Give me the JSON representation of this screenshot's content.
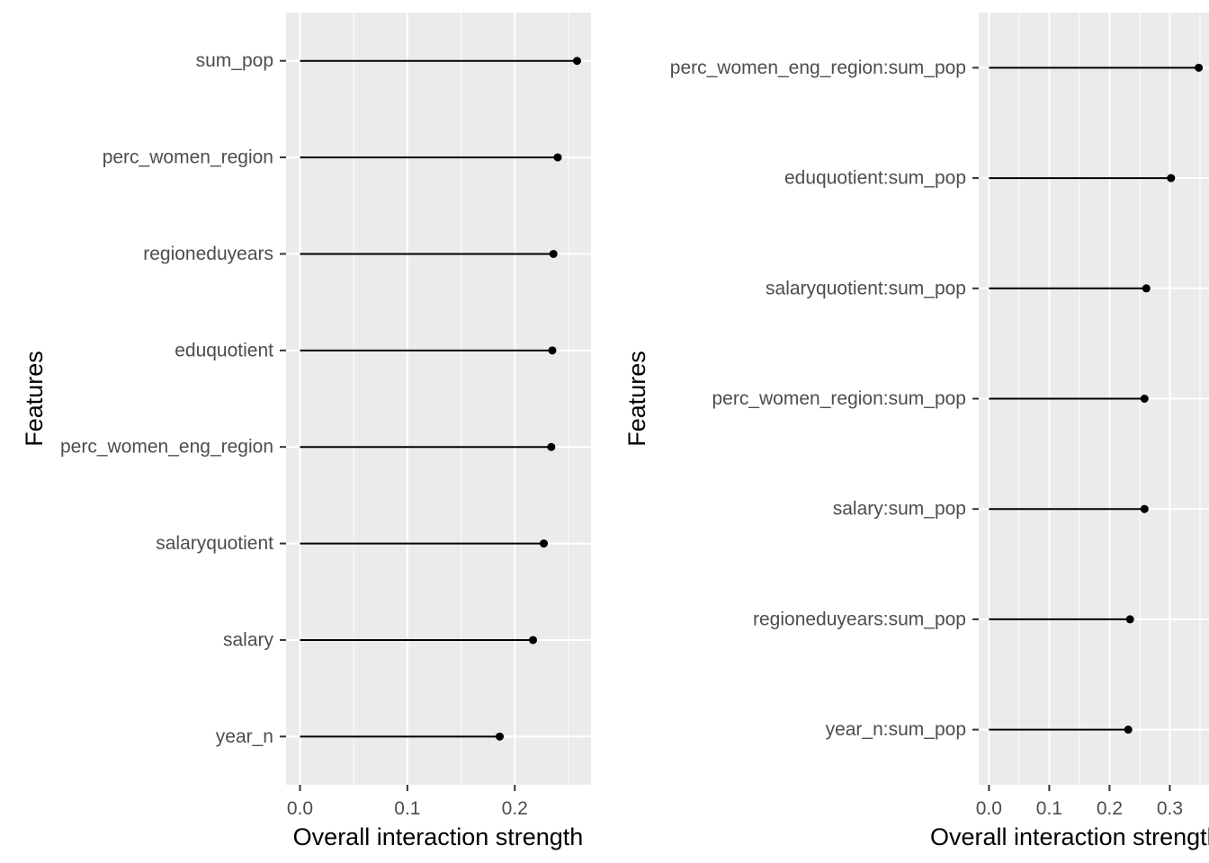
{
  "chart_data": [
    {
      "type": "lollipop",
      "orientation": "horizontal",
      "categories": [
        "sum_pop",
        "perc_women_region",
        "regioneduyears",
        "eduquotient",
        "perc_women_eng_region",
        "salaryquotient",
        "salary",
        "year_n"
      ],
      "values": [
        0.258,
        0.24,
        0.236,
        0.235,
        0.234,
        0.227,
        0.217,
        0.186
      ],
      "xlabel": "Overall interaction strength",
      "ylabel": "Features",
      "xlim": [
        -0.013,
        0.271
      ],
      "x_ticks": [
        0.0,
        0.1,
        0.2
      ],
      "x_tick_labels": [
        "0.0",
        "0.1",
        "0.2"
      ],
      "grid": true,
      "panel_background": "#ebebeb",
      "grid_color": "#ffffff",
      "point_color": "#000000"
    },
    {
      "type": "lollipop",
      "orientation": "horizontal",
      "categories": [
        "perc_women_eng_region:sum_pop",
        "eduquotient:sum_pop",
        "salaryquotient:sum_pop",
        "perc_women_region:sum_pop",
        "salary:sum_pop",
        "regioneduyears:sum_pop",
        "year_n:sum_pop"
      ],
      "values": [
        0.348,
        0.302,
        0.261,
        0.258,
        0.258,
        0.234,
        0.231
      ],
      "xlabel": "Overall interaction strength",
      "ylabel": "Features",
      "xlim": [
        -0.017,
        0.365
      ],
      "x_ticks": [
        0.0,
        0.1,
        0.2,
        0.3
      ],
      "x_tick_labels": [
        "0.0",
        "0.1",
        "0.2",
        "0.3"
      ],
      "grid": true,
      "panel_background": "#ebebeb",
      "grid_color": "#ffffff",
      "point_color": "#000000"
    }
  ]
}
